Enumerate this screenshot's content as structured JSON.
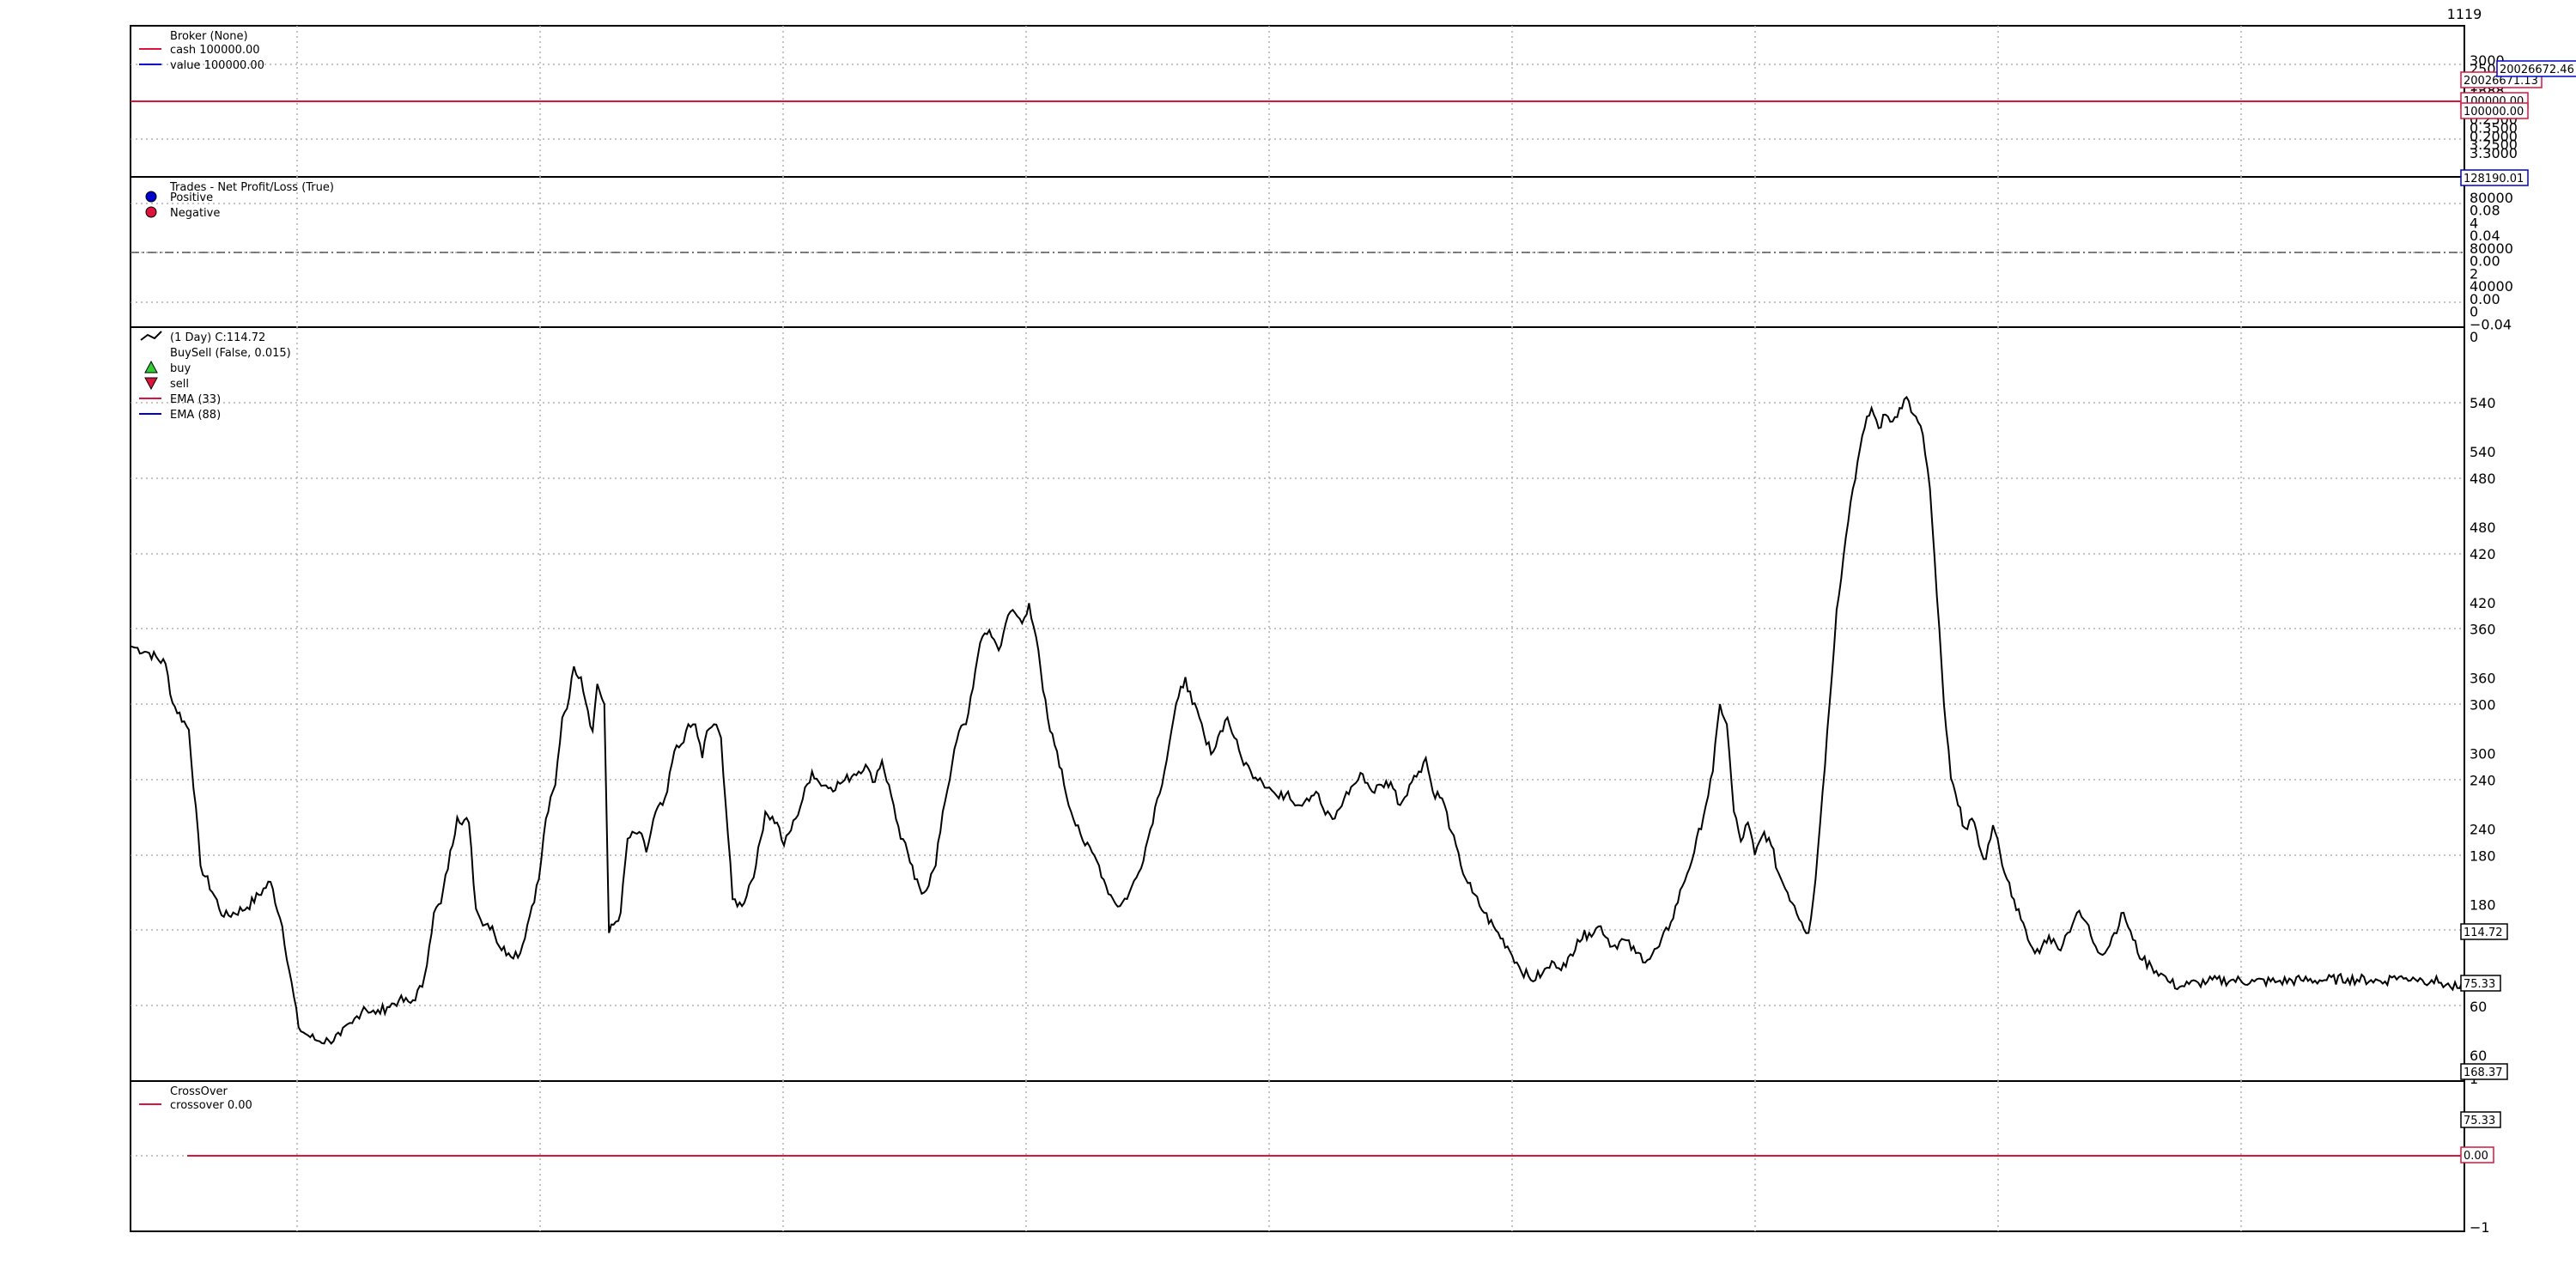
{
  "colors": {
    "frame": "#000000",
    "grid": "#b0b0b0",
    "price": "#000000",
    "ema_fast": "#dc143c",
    "ema_slow": "#0000cd",
    "positive": "#0000cd",
    "negative": "#dc143c",
    "buy": "#32cd32",
    "sell": "#dc143c",
    "crossover": "#dc143c",
    "cash": "#dc143c",
    "value": "#0000cd"
  },
  "top_axis_label": "1119",
  "panels": {
    "broker": {
      "legend": [
        {
          "label": "Broker (None)",
          "marker": "none"
        },
        {
          "label": "cash 100000.00",
          "marker": "line",
          "color": "#dc143c"
        },
        {
          "label": "value 100000.00",
          "marker": "line",
          "color": "#0000cd"
        }
      ],
      "ticks": [
        "3000",
        "2500",
        "2000",
        "1500",
        "1000",
        "0.5",
        "1.5",
        "0.2500",
        "0.3500",
        "0.2000",
        "3.2500",
        "3.3000"
      ],
      "value_tags": [
        {
          "text": "20026671.13",
          "color": "#dc143c"
        },
        {
          "text": "20026672.46",
          "color": "#0000cd"
        },
        {
          "text": "100000.00",
          "color": "#dc143c"
        },
        {
          "text": "100000.00",
          "color": "#dc143c"
        }
      ]
    },
    "trades": {
      "legend": [
        {
          "label": "Trades - Net Profit/Loss (True)",
          "marker": "none"
        },
        {
          "label": "Positive",
          "marker": "dot",
          "color": "#0000cd"
        },
        {
          "label": "Negative",
          "marker": "dot",
          "color": "#dc143c"
        }
      ],
      "ticks": [
        "80000",
        "0.08",
        "4",
        "0.04",
        "80000",
        "0.00",
        "2",
        "40000",
        "0.00",
        "0",
        "−0.04",
        "0"
      ],
      "value_tags": [
        {
          "text": "128190.01",
          "color": "#0000cd"
        }
      ]
    },
    "price": {
      "legend": [
        {
          "label": "(1 Day) C:114.72",
          "marker": "zigzag",
          "color": "#000000"
        },
        {
          "label": "BuySell (False, 0.015)",
          "marker": "none"
        },
        {
          "label": "buy",
          "marker": "up-triangle",
          "color": "#32cd32"
        },
        {
          "label": "sell",
          "marker": "down-triangle",
          "color": "#dc143c"
        },
        {
          "label": "EMA (33)",
          "marker": "line",
          "color": "#dc143c"
        },
        {
          "label": "EMA (88)",
          "marker": "line",
          "color": "#0000cd"
        }
      ],
      "ticks_primary": [
        "540",
        "480",
        "420",
        "360",
        "300",
        "240",
        "180",
        "120",
        "60"
      ],
      "ticks_secondary": [
        "540",
        "480",
        "420",
        "360",
        "300",
        "240",
        "180",
        "120",
        "60"
      ],
      "value_tags": [
        {
          "text": "114.72",
          "color": "#000000"
        },
        {
          "text": "75.33",
          "color": "#000000"
        },
        {
          "text": "168.37",
          "color": "#000000"
        },
        {
          "text": "75.33",
          "color": "#000000"
        }
      ]
    },
    "crossover": {
      "legend": [
        {
          "label": "CrossOver",
          "marker": "none"
        },
        {
          "label": "crossover 0.00",
          "marker": "line",
          "color": "#dc143c"
        }
      ],
      "ticks": [
        "1",
        "0",
        "−1"
      ],
      "value_tags": [
        {
          "text": "0.00",
          "color": "#dc143c"
        }
      ]
    }
  },
  "chart_data": {
    "type": "line",
    "title": "",
    "x_count": 1000,
    "price_ylim": [
      40,
      600
    ],
    "price_series": {
      "name": "(1 Day) C:114.72",
      "points": [
        [
          0,
          363
        ],
        [
          2,
          362
        ],
        [
          8,
          358
        ],
        [
          15,
          350
        ],
        [
          18,
          321
        ],
        [
          25,
          301
        ],
        [
          30,
          200
        ],
        [
          40,
          162
        ],
        [
          50,
          169
        ],
        [
          60,
          188
        ],
        [
          65,
          155
        ],
        [
          72,
          80
        ],
        [
          75,
          75
        ],
        [
          80,
          70
        ],
        [
          85,
          70
        ],
        [
          90,
          74
        ],
        [
          95,
          83
        ],
        [
          100,
          95
        ],
        [
          105,
          90
        ],
        [
          110,
          95
        ],
        [
          115,
          100
        ],
        [
          120,
          98
        ],
        [
          125,
          110
        ],
        [
          128,
          140
        ],
        [
          130,
          165
        ],
        [
          133,
          172
        ],
        [
          140,
          236
        ],
        [
          145,
          232
        ],
        [
          148,
          168
        ],
        [
          150,
          160
        ],
        [
          155,
          155
        ],
        [
          158,
          140
        ],
        [
          162,
          135
        ],
        [
          167,
          135
        ],
        [
          172,
          170
        ],
        [
          175,
          190
        ],
        [
          178,
          235
        ],
        [
          182,
          260
        ],
        [
          185,
          310
        ],
        [
          188,
          325
        ],
        [
          190,
          348
        ],
        [
          193,
          340
        ],
        [
          196,
          315
        ],
        [
          198,
          300
        ],
        [
          200,
          335
        ],
        [
          203,
          320
        ],
        [
          205,
          150
        ],
        [
          210,
          165
        ],
        [
          213,
          220
        ],
        [
          218,
          225
        ],
        [
          221,
          210
        ],
        [
          225,
          240
        ],
        [
          228,
          245
        ],
        [
          230,
          255
        ],
        [
          233,
          285
        ],
        [
          236,
          290
        ],
        [
          238,
          300
        ],
        [
          242,
          305
        ],
        [
          245,
          280
        ],
        [
          247,
          300
        ],
        [
          250,
          305
        ],
        [
          253,
          295
        ],
        [
          258,
          175
        ],
        [
          262,
          170
        ],
        [
          268,
          200
        ],
        [
          272,
          240
        ],
        [
          277,
          232
        ],
        [
          280,
          215
        ],
        [
          285,
          235
        ],
        [
          292,
          270
        ],
        [
          295,
          262
        ],
        [
          300,
          258
        ],
        [
          305,
          262
        ],
        [
          310,
          268
        ],
        [
          315,
          275
        ],
        [
          318,
          262
        ],
        [
          322,
          278
        ],
        [
          327,
          245
        ],
        [
          330,
          220
        ],
        [
          333,
          210
        ],
        [
          336,
          190
        ],
        [
          340,
          180
        ],
        [
          345,
          200
        ],
        [
          348,
          240
        ],
        [
          352,
          275
        ],
        [
          355,
          300
        ],
        [
          358,
          305
        ],
        [
          362,
          345
        ],
        [
          365,
          370
        ],
        [
          368,
          375
        ],
        [
          372,
          360
        ],
        [
          375,
          380
        ],
        [
          378,
          390
        ],
        [
          382,
          380
        ],
        [
          385,
          395
        ],
        [
          388,
          370
        ],
        [
          391,
          330
        ],
        [
          394,
          300
        ],
        [
          397,
          285
        ],
        [
          400,
          260
        ],
        [
          403,
          240
        ],
        [
          406,
          230
        ],
        [
          409,
          215
        ],
        [
          412,
          210
        ],
        [
          415,
          200
        ],
        [
          418,
          185
        ],
        [
          421,
          175
        ],
        [
          424,
          170
        ],
        [
          428,
          180
        ],
        [
          432,
          195
        ],
        [
          436,
          220
        ],
        [
          440,
          250
        ],
        [
          443,
          270
        ],
        [
          446,
          300
        ],
        [
          449,
          325
        ],
        [
          452,
          340
        ],
        [
          455,
          320
        ],
        [
          458,
          310
        ],
        [
          461,
          290
        ],
        [
          464,
          285
        ],
        [
          467,
          300
        ],
        [
          470,
          310
        ],
        [
          473,
          295
        ],
        [
          476,
          280
        ],
        [
          480,
          270
        ],
        [
          484,
          265
        ],
        [
          488,
          258
        ],
        [
          492,
          250
        ],
        [
          496,
          255
        ],
        [
          500,
          245
        ],
        [
          504,
          250
        ],
        [
          508,
          255
        ],
        [
          512,
          238
        ],
        [
          516,
          235
        ],
        [
          520,
          250
        ],
        [
          524,
          260
        ],
        [
          528,
          268
        ],
        [
          532,
          255
        ],
        [
          536,
          260
        ],
        [
          540,
          262
        ],
        [
          544,
          245
        ],
        [
          548,
          260
        ],
        [
          552,
          270
        ],
        [
          555,
          280
        ],
        [
          558,
          255
        ],
        [
          562,
          250
        ],
        [
          566,
          225
        ],
        [
          570,
          200
        ],
        [
          575,
          180
        ],
        [
          580,
          165
        ],
        [
          585,
          152
        ],
        [
          590,
          140
        ],
        [
          595,
          125
        ],
        [
          600,
          115
        ],
        [
          605,
          120
        ],
        [
          610,
          128
        ],
        [
          615,
          125
        ],
        [
          620,
          145
        ],
        [
          625,
          150
        ],
        [
          630,
          155
        ],
        [
          635,
          140
        ],
        [
          640,
          145
        ],
        [
          645,
          135
        ],
        [
          650,
          130
        ],
        [
          655,
          140
        ],
        [
          660,
          158
        ],
        [
          665,
          185
        ],
        [
          670,
          210
        ],
        [
          675,
          245
        ],
        [
          678,
          270
        ],
        [
          681,
          320
        ],
        [
          684,
          305
        ],
        [
          687,
          240
        ],
        [
          690,
          218
        ],
        [
          693,
          232
        ],
        [
          696,
          208
        ],
        [
          700,
          225
        ],
        [
          703,
          215
        ],
        [
          706,
          195
        ],
        [
          710,
          180
        ],
        [
          713,
          170
        ],
        [
          716,
          158
        ],
        [
          719,
          150
        ],
        [
          722,
          190
        ],
        [
          725,
          255
        ],
        [
          728,
          320
        ],
        [
          731,
          390
        ],
        [
          734,
          430
        ],
        [
          737,
          470
        ],
        [
          740,
          500
        ],
        [
          743,
          525
        ],
        [
          746,
          540
        ],
        [
          749,
          525
        ],
        [
          752,
          535
        ],
        [
          755,
          530
        ],
        [
          758,
          540
        ],
        [
          761,
          548
        ],
        [
          764,
          535
        ],
        [
          768,
          520
        ],
        [
          771,
          480
        ],
        [
          774,
          400
        ],
        [
          777,
          320
        ],
        [
          780,
          265
        ],
        [
          783,
          245
        ],
        [
          786,
          228
        ],
        [
          789,
          235
        ],
        [
          792,
          215
        ],
        [
          795,
          205
        ],
        [
          798,
          230
        ],
        [
          801,
          210
        ],
        [
          804,
          190
        ],
        [
          807,
          175
        ],
        [
          810,
          160
        ],
        [
          813,
          145
        ],
        [
          816,
          135
        ],
        [
          819,
          140
        ],
        [
          822,
          148
        ],
        [
          826,
          138
        ],
        [
          830,
          150
        ],
        [
          834,
          165
        ],
        [
          838,
          158
        ],
        [
          842,
          140
        ],
        [
          846,
          135
        ],
        [
          850,
          150
        ],
        [
          854,
          165
        ],
        [
          858,
          145
        ],
        [
          862,
          130
        ],
        [
          866,
          125
        ],
        [
          870,
          120
        ],
        [
          874,
          113
        ],
        [
          878,
          110
        ],
        [
          882,
          112
        ],
        [
          886,
          113
        ],
        [
          890,
          114
        ],
        [
          900,
          115
        ],
        [
          910,
          114
        ],
        [
          920,
          114
        ],
        [
          930,
          115
        ],
        [
          940,
          115
        ],
        [
          950,
          116
        ],
        [
          960,
          115
        ],
        [
          966,
          114
        ],
        [
          970,
          118
        ],
        [
          974,
          116
        ],
        [
          978,
          117
        ],
        [
          982,
          115
        ],
        [
          986,
          115
        ],
        [
          990,
          113
        ],
        [
          994,
          110
        ],
        [
          998,
          109
        ],
        [
          1000,
          110
        ]
      ]
    },
    "crossover_value": 0.0
  }
}
